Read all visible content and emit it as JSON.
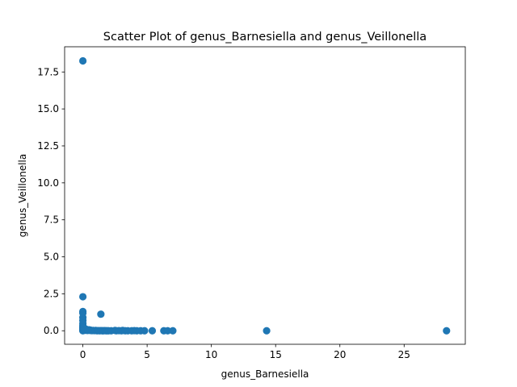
{
  "chart_data": {
    "type": "scatter",
    "title": "Scatter Plot of genus_Barnesiella and genus_Veillonella",
    "xlabel": "genus_Barnesiella",
    "ylabel": "genus_Veillonella",
    "xlim": [
      -1.42,
      29.76
    ],
    "ylim": [
      -0.9145,
      19.2045
    ],
    "xticks": [
      0,
      5,
      10,
      15,
      20,
      25
    ],
    "xtick_labels": [
      "0",
      "5",
      "10",
      "15",
      "20",
      "25"
    ],
    "yticks": [
      0,
      2.5,
      5,
      7.5,
      10,
      12.5,
      15,
      17.5
    ],
    "ytick_labels": [
      "0.0",
      "2.5",
      "5.0",
      "7.5",
      "10.0",
      "12.5",
      "15.0",
      "17.5"
    ],
    "grid": false,
    "marker_color": "#1f77b4",
    "x": [
      0,
      0,
      0,
      0,
      0,
      0,
      0,
      0,
      0,
      0,
      0,
      0,
      0,
      0,
      0,
      0,
      0.05,
      0.1,
      0.15,
      0.2,
      0.25,
      0.3,
      0.35,
      0.4,
      0.5,
      0.6,
      0.7,
      0.8,
      0.9,
      1.0,
      1.1,
      1.2,
      1.3,
      1.4,
      1.5,
      1.6,
      1.7,
      1.8,
      1.9,
      2.0,
      2.2,
      2.5,
      2.6,
      2.8,
      3.0,
      3.1,
      3.3,
      3.5,
      3.8,
      4.0,
      4.2,
      4.5,
      4.8,
      5.4,
      6.3,
      6.6,
      7.0,
      14.3,
      28.3,
      0.2,
      0.3,
      0.5,
      0.6,
      0.1,
      0.15,
      0.4,
      1.4
    ],
    "y": [
      18.25,
      2.3,
      1.3,
      1.2,
      0.9,
      0.7,
      0.5,
      0.35,
      0.25,
      0.2,
      0.15,
      0.1,
      0.07,
      0.05,
      0.02,
      0,
      0.1,
      0.05,
      0.08,
      0.03,
      0.06,
      0.04,
      0.02,
      0.05,
      0.03,
      0.02,
      0.01,
      0.02,
      0.01,
      0.02,
      0,
      0.01,
      0,
      0.01,
      0,
      0,
      0.01,
      0,
      0,
      0,
      0,
      0.02,
      0,
      0.01,
      0,
      0.02,
      0,
      0,
      0,
      0.01,
      0,
      0,
      0,
      0,
      0,
      0,
      0,
      0,
      0,
      0.12,
      0.08,
      0.06,
      0.04,
      0.15,
      0.1,
      0.03,
      1.12
    ]
  }
}
